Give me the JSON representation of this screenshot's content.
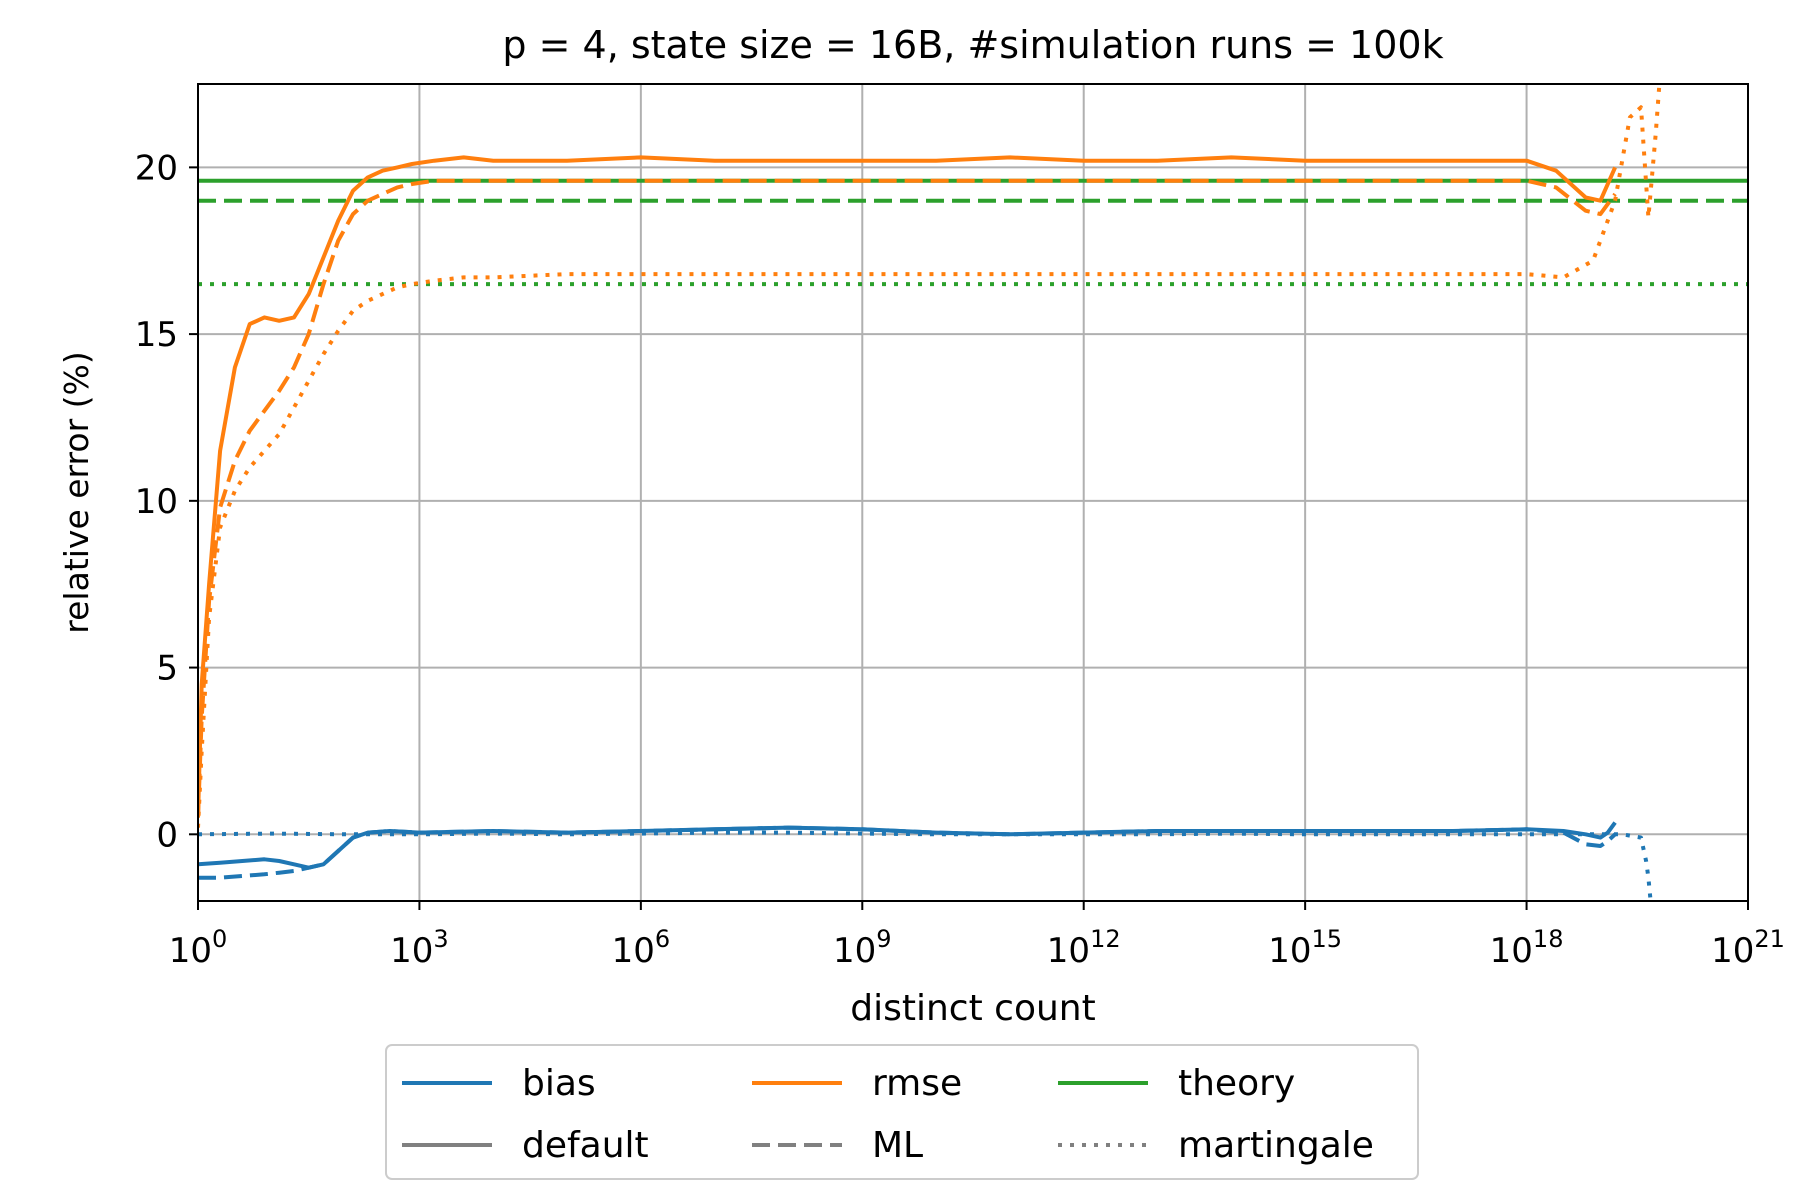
{
  "chart_data": {
    "type": "line",
    "title": "p = 4, state size = 16B, #simulation runs = 100k",
    "xlabel": "distinct count",
    "ylabel": "relative error (%)",
    "xscale": "log10",
    "xlim_exp": [
      0,
      21
    ],
    "ylim": [
      -2,
      22.5
    ],
    "x_ticks": [
      {
        "exp": 0,
        "base": "10",
        "sup": "0"
      },
      {
        "exp": 3,
        "base": "10",
        "sup": "3"
      },
      {
        "exp": 6,
        "base": "10",
        "sup": "6"
      },
      {
        "exp": 9,
        "base": "10",
        "sup": "9"
      },
      {
        "exp": 12,
        "base": "10",
        "sup": "12"
      },
      {
        "exp": 15,
        "base": "10",
        "sup": "15"
      },
      {
        "exp": 18,
        "base": "10",
        "sup": "18"
      },
      {
        "exp": 21,
        "base": "10",
        "sup": "21"
      }
    ],
    "y_ticks": [
      0,
      5,
      10,
      15,
      20
    ],
    "grid": true,
    "legend_position": "below-center",
    "legend": [
      {
        "label": "bias",
        "color": "#1f77b4",
        "dash": "solid"
      },
      {
        "label": "rmse",
        "color": "#ff7f0e",
        "dash": "solid"
      },
      {
        "label": "theory",
        "color": "#2ca02c",
        "dash": "solid"
      },
      {
        "label": "default",
        "color": "#808080",
        "dash": "solid"
      },
      {
        "label": "ML",
        "color": "#808080",
        "dash": "dashed"
      },
      {
        "label": "martingale",
        "color": "#808080",
        "dash": "dotted"
      }
    ],
    "theory_lines": [
      {
        "name": "theory default",
        "value": 19.6,
        "color": "#2ca02c",
        "dash": "solid"
      },
      {
        "name": "theory ML",
        "value": 19.0,
        "color": "#2ca02c",
        "dash": "dashed"
      },
      {
        "name": "theory martingale",
        "value": 16.5,
        "color": "#2ca02c",
        "dash": "dotted"
      }
    ],
    "series": [
      {
        "name": "rmse default",
        "color": "#ff7f0e",
        "dash": "solid",
        "x_exp": [
          0,
          0.05,
          0.15,
          0.3,
          0.5,
          0.7,
          0.9,
          1.1,
          1.3,
          1.5,
          1.7,
          1.9,
          2.1,
          2.3,
          2.5,
          2.7,
          2.9,
          3.2,
          3.6,
          4,
          5,
          6,
          7,
          8,
          9,
          10,
          11,
          12,
          13,
          14,
          15,
          16,
          17,
          18,
          18.4,
          18.8,
          19.0,
          19.2
        ],
        "y": [
          0.5,
          4.5,
          7.5,
          11.5,
          14.0,
          15.3,
          15.5,
          15.4,
          15.5,
          16.2,
          17.3,
          18.4,
          19.3,
          19.7,
          19.9,
          20.0,
          20.1,
          20.2,
          20.3,
          20.2,
          20.2,
          20.3,
          20.2,
          20.2,
          20.2,
          20.2,
          20.3,
          20.2,
          20.2,
          20.3,
          20.2,
          20.2,
          20.2,
          20.2,
          19.9,
          19.1,
          19.0,
          20.0
        ]
      },
      {
        "name": "rmse ML",
        "color": "#ff7f0e",
        "dash": "dashed",
        "x_exp": [
          0,
          0.05,
          0.15,
          0.3,
          0.5,
          0.7,
          0.9,
          1.1,
          1.3,
          1.5,
          1.7,
          1.9,
          2.1,
          2.3,
          2.5,
          2.7,
          2.9,
          3.2,
          3.6,
          4,
          5,
          6,
          7,
          8,
          9,
          10,
          11,
          12,
          13,
          14,
          15,
          16,
          17,
          18,
          18.4,
          18.8,
          19.0,
          19.2
        ],
        "y": [
          0.5,
          3.5,
          7.0,
          9.8,
          11.2,
          12.1,
          12.7,
          13.3,
          14.0,
          15.0,
          16.5,
          17.8,
          18.6,
          19.0,
          19.2,
          19.4,
          19.5,
          19.6,
          19.6,
          19.6,
          19.6,
          19.6,
          19.6,
          19.6,
          19.6,
          19.6,
          19.6,
          19.6,
          19.6,
          19.6,
          19.6,
          19.6,
          19.6,
          19.6,
          19.4,
          18.7,
          18.6,
          19.2
        ]
      },
      {
        "name": "rmse martingale",
        "color": "#ff7f0e",
        "dash": "dotted",
        "x_exp": [
          0,
          0.05,
          0.15,
          0.3,
          0.5,
          0.7,
          0.9,
          1.1,
          1.3,
          1.5,
          1.7,
          1.9,
          2.1,
          2.3,
          2.5,
          2.7,
          2.9,
          3.2,
          3.6,
          4,
          5,
          6,
          7,
          8,
          9,
          10,
          11,
          12,
          13,
          14,
          15,
          16,
          17,
          18,
          18.5,
          18.9,
          19.2,
          19.4,
          19.55,
          19.65,
          19.75,
          19.8,
          19.85
        ],
        "y": [
          0.2,
          2.5,
          6.5,
          9.2,
          10.3,
          11.0,
          11.5,
          12.0,
          12.8,
          13.6,
          14.4,
          15.1,
          15.7,
          16.0,
          16.2,
          16.4,
          16.5,
          16.6,
          16.7,
          16.7,
          16.8,
          16.8,
          16.8,
          16.8,
          16.8,
          16.8,
          16.8,
          16.8,
          16.8,
          16.8,
          16.8,
          16.8,
          16.8,
          16.8,
          16.7,
          17.2,
          19.0,
          21.5,
          21.8,
          18.5,
          21.0,
          22.5,
          22.5
        ]
      },
      {
        "name": "bias default",
        "color": "#1f77b4",
        "dash": "solid",
        "x_exp": [
          0,
          0.3,
          0.6,
          0.9,
          1.1,
          1.3,
          1.5,
          1.7,
          1.9,
          2.1,
          2.3,
          2.6,
          3,
          4,
          5,
          6,
          7,
          8,
          9,
          10,
          11,
          12,
          13,
          14,
          15,
          16,
          17,
          18,
          18.5,
          18.8,
          19.0,
          19.1,
          19.2
        ],
        "y": [
          -0.9,
          -0.85,
          -0.8,
          -0.75,
          -0.8,
          -0.9,
          -1.0,
          -0.9,
          -0.5,
          -0.1,
          0.05,
          0.1,
          0.05,
          0.1,
          0.05,
          0.1,
          0.15,
          0.2,
          0.15,
          0.05,
          0.0,
          0.05,
          0.1,
          0.1,
          0.1,
          0.1,
          0.1,
          0.15,
          0.1,
          0.0,
          -0.1,
          0.05,
          0.35
        ]
      },
      {
        "name": "bias ML",
        "color": "#1f77b4",
        "dash": "dashed",
        "x_exp": [
          0,
          0.3,
          0.6,
          0.9,
          1.1,
          1.3,
          1.5,
          1.7,
          1.9,
          2.1,
          2.3,
          2.6,
          3,
          4,
          5,
          6,
          7,
          8,
          9,
          10,
          11,
          12,
          13,
          14,
          15,
          16,
          17,
          18,
          18.5,
          18.8,
          19.0,
          19.1,
          19.2
        ],
        "y": [
          -1.3,
          -1.3,
          -1.25,
          -1.2,
          -1.15,
          -1.1,
          -1.0,
          -0.9,
          -0.5,
          -0.1,
          0.05,
          0.1,
          0.05,
          0.1,
          0.05,
          0.1,
          0.15,
          0.2,
          0.15,
          0.05,
          0.0,
          0.05,
          0.1,
          0.1,
          0.1,
          0.1,
          0.1,
          0.15,
          0.05,
          -0.3,
          -0.35,
          -0.2,
          0.0
        ]
      },
      {
        "name": "bias martingale",
        "color": "#1f77b4",
        "dash": "dotted",
        "x_exp": [
          0,
          1,
          2,
          3,
          4,
          5,
          6,
          7,
          8,
          9,
          10,
          11,
          12,
          13,
          14,
          15,
          16,
          17,
          18,
          18.6,
          19.0,
          19.3,
          19.55,
          19.62,
          19.65,
          19.68
        ],
        "y": [
          0.0,
          0.02,
          0.0,
          0.0,
          0.02,
          0.0,
          0.02,
          0.05,
          0.05,
          0.02,
          0.0,
          0.0,
          0.0,
          0.0,
          0.02,
          0.0,
          0.0,
          0.0,
          0.0,
          0.0,
          0.0,
          0.0,
          -0.1,
          -0.8,
          -1.3,
          -2.0
        ]
      }
    ]
  }
}
